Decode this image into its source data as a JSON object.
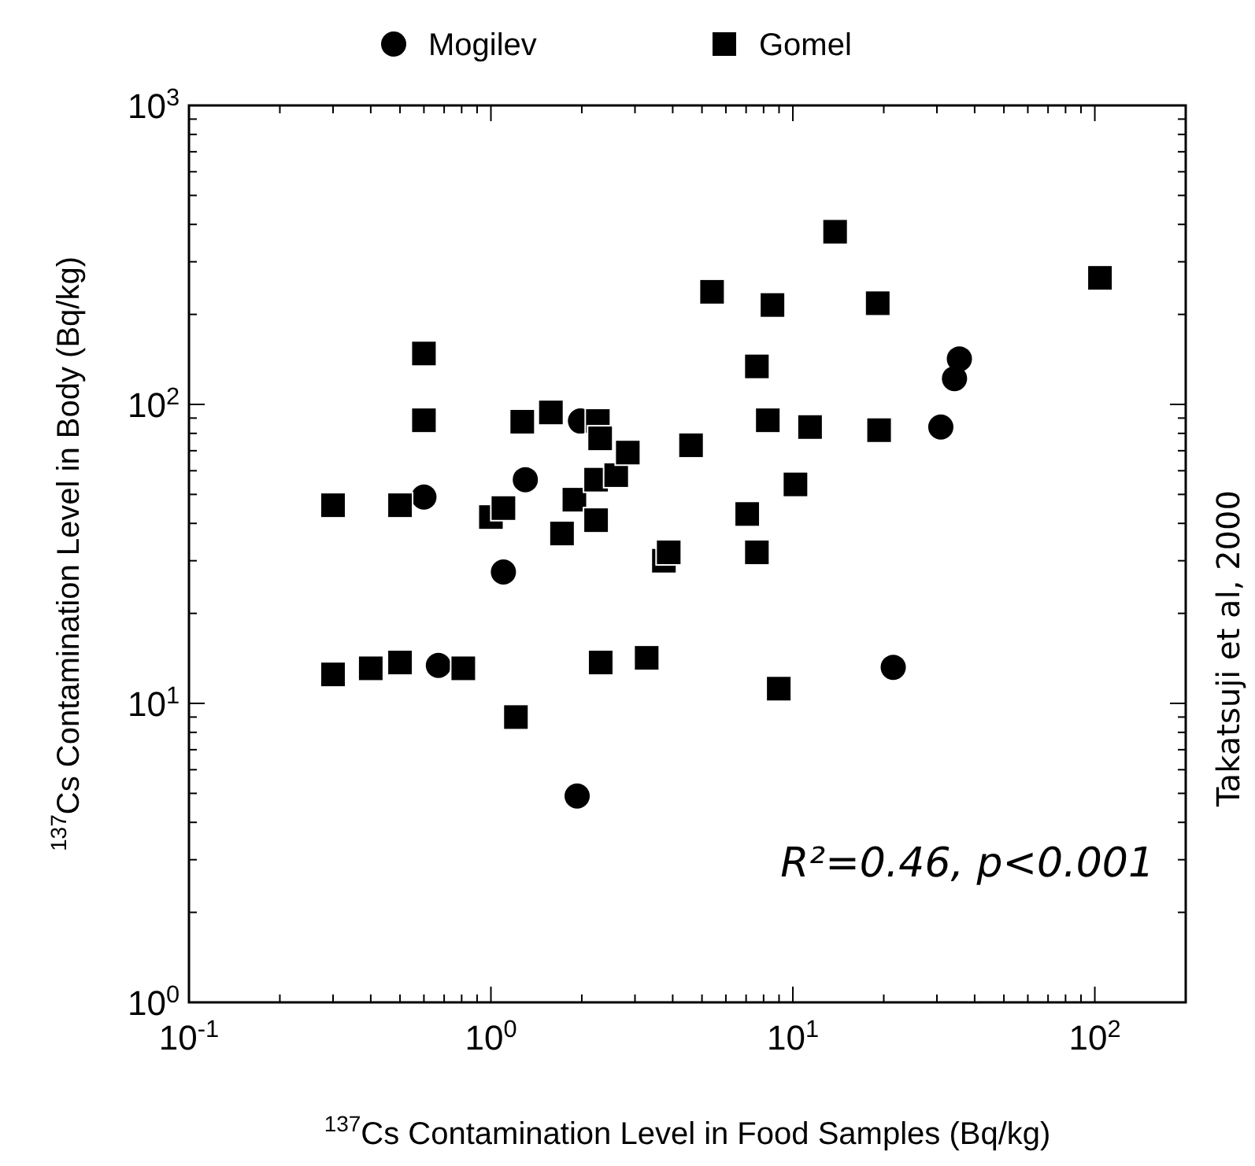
{
  "chart_data": {
    "type": "scatter",
    "xlabel": "$^{137}$Cs Contamination Level in Food Samples (Bq/kg)",
    "ylabel": "$^{137}$Cs Contamination Level in Body (Bq/kg)",
    "log": "xy",
    "xlim": [
      0.1,
      200
    ],
    "ylim": [
      1,
      1000
    ],
    "xticks": [
      {
        "value": 0.1,
        "label": "10$^{-1}$"
      },
      {
        "value": 1,
        "label": "10$^{0}$"
      },
      {
        "value": 10,
        "label": "10$^{1}$"
      },
      {
        "value": 100,
        "label": "10$^{2}$"
      }
    ],
    "yticks": [
      {
        "value": 1,
        "label": "10$^{0}$"
      },
      {
        "value": 10,
        "label": "10$^{1}$"
      },
      {
        "value": 100,
        "label": "10$^{2}$"
      },
      {
        "value": 1000,
        "label": "10$^{3}$"
      }
    ],
    "grid": false,
    "legend": "top",
    "annotations": [
      "R²=0.46, p<0.001",
      "Takatsuji et al,  2000"
    ],
    "series": [
      {
        "name": "Mogilev",
        "color": "#000000",
        "marker": "circle",
        "x": [
          0.6,
          1.1,
          1.3,
          1.98,
          1.93,
          0.67,
          30.9,
          34.3,
          35.6,
          21.5
        ],
        "values": [
          49,
          27.5,
          56,
          88,
          4.9,
          13.4,
          84,
          122,
          142,
          13.2
        ]
      },
      {
        "name": "Gomel",
        "color": "#000000",
        "marker": "square",
        "x": [
          0.3,
          0.3,
          0.4,
          0.5,
          0.5,
          0.6,
          0.6,
          0.81,
          1.0,
          1.1,
          1.21,
          1.27,
          1.58,
          1.72,
          1.89,
          2.23,
          2.23,
          2.26,
          2.3,
          2.31,
          2.6,
          2.84,
          3.28,
          3.74,
          3.88,
          4.6,
          5.4,
          7.06,
          7.6,
          7.6,
          8.26,
          8.56,
          8.98,
          10.2,
          11.4,
          13.8,
          19.1,
          19.3,
          104
        ],
        "values": [
          46,
          12.5,
          13.1,
          46,
          13.7,
          148,
          88.5,
          13.1,
          42,
          45,
          9.0,
          87.5,
          94,
          37,
          48,
          56,
          41,
          88,
          77,
          13.7,
          58,
          69,
          14.2,
          30,
          32,
          73,
          238,
          43,
          134,
          32,
          88.5,
          215,
          11.2,
          54,
          84,
          378,
          218,
          82,
          265
        ]
      }
    ]
  }
}
